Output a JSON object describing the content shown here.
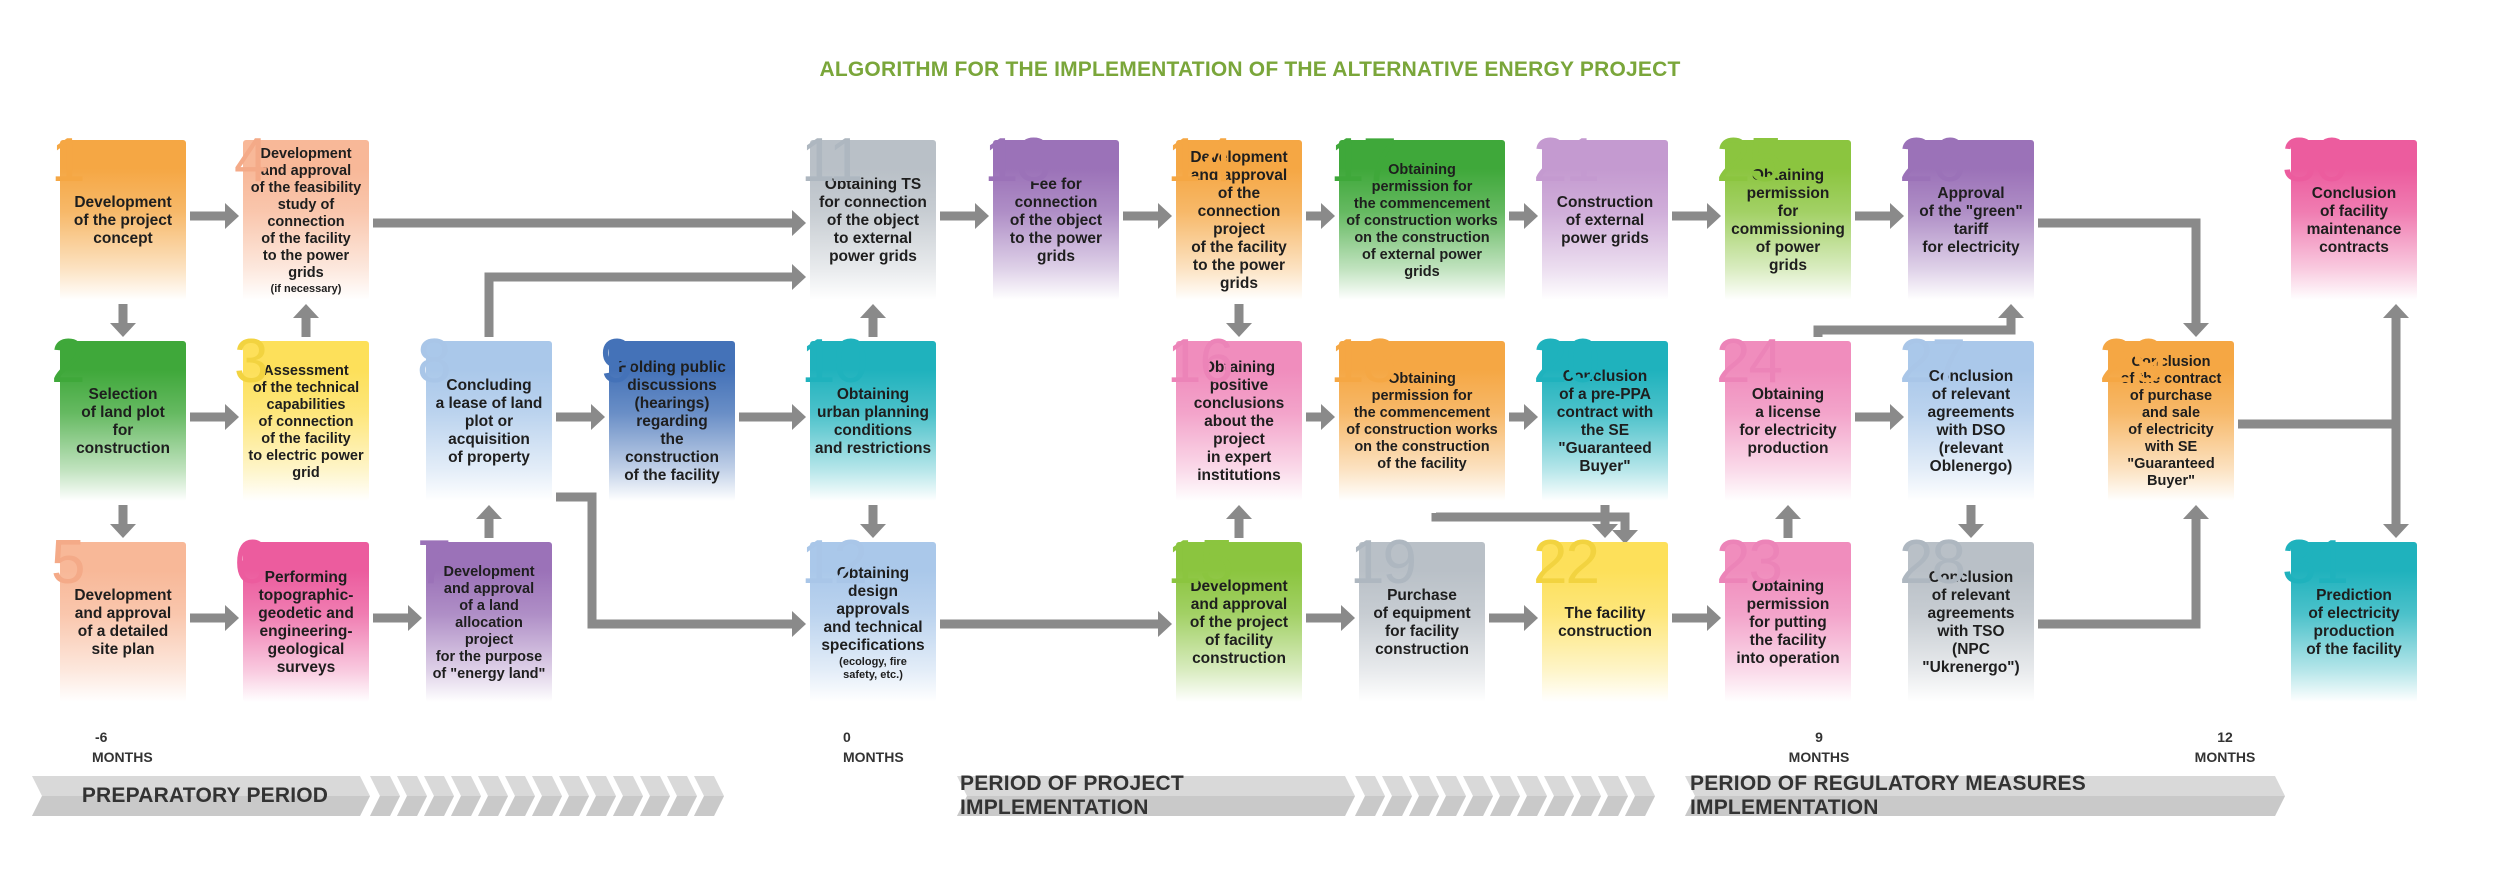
{
  "title": "ALGORITHM FOR THE IMPLEMENTATION OF THE ALTERNATIVE ENERGY PROJECT",
  "steps": [
    {
      "n": "1",
      "text": "Development\nof the project\nconcept",
      "color": "#f5a744",
      "numColor": "#f5a744"
    },
    {
      "n": "2",
      "text": "Selection\nof land plot\nfor construction",
      "color": "#3fa83a",
      "numColor": "#3fa83a"
    },
    {
      "n": "3",
      "text": "Assessment\nof the technical\ncapabilities\nof connection\nof the facility\nto electric power\ngrid",
      "color": "#fde05a",
      "numColor": "#f2d340"
    },
    {
      "n": "4",
      "text": "Development\nand approval\nof the feasibility\nstudy of connection\nof the facility\nto the power\ngrids",
      "note": "(if necessary)",
      "color": "#f8b898",
      "numColor": "#f4aa88"
    },
    {
      "n": "5",
      "text": "Development\nand approval\nof a detailed\nsite plan",
      "color": "#f8b898",
      "numColor": "#f4aa88"
    },
    {
      "n": "6",
      "text": "Performing\ntopographic-\ngeodetic and\nengineering-\ngeological\nsurveys",
      "color": "#ec5c9e",
      "numColor": "#ec5c9e"
    },
    {
      "n": "7",
      "text": "Development\nand approval\nof a land\nallocation\nproject\nfor the purpose\nof \"energy land\"",
      "color": "#9b72b8",
      "numColor": "#9b72b8"
    },
    {
      "n": "8",
      "text": "Concluding\na lease of land\nplot or\nacquisition\nof property",
      "color": "#aac8ea",
      "numColor": "#a9c6e8"
    },
    {
      "n": "9",
      "text": "Holding public\ndiscussions\n(hearings)\nregarding\nthe construction\nof the facility",
      "color": "#4472b8",
      "numColor": "#4472b8"
    },
    {
      "n": "10",
      "text": "Obtaining\nurban planning\nconditions\nand restrictions",
      "color": "#1fb2bd",
      "numColor": "#1fb2bd"
    },
    {
      "n": "11",
      "text": "Obtaining TS\nfor connection\nof the object\nto external\npower grids",
      "color": "#b9c0c7",
      "numColor": "#aeb7c0"
    },
    {
      "n": "12",
      "text": "Obtaining\ndesign\napprovals\nand technical\nspecifications",
      "note": "(ecology, fire\nsafety, etc.)",
      "color": "#aac8ea",
      "numColor": "#a9c6e8"
    },
    {
      "n": "13",
      "text": "Fee for\nconnection\nof the object\nto the power\ngrids",
      "color": "#9b72b8",
      "numColor": "#9b72b8"
    },
    {
      "n": "14",
      "text": "Development\nand approval\nof the connection\nproject\nof the facility\nto the power\ngrids",
      "color": "#f5a744",
      "numColor": "#f5a744"
    },
    {
      "n": "15",
      "text": "Development\nand approval\nof the project\nof facility\nconstruction",
      "color": "#8bc53f",
      "numColor": "#8bc53f"
    },
    {
      "n": "16",
      "text": "Obtaining\npositive\nconclusions\nabout the project\nin expert\ninstitutions",
      "color": "#f08dbd",
      "numColor": "#ec84b8"
    },
    {
      "n": "17",
      "text": "Obtaining\npermission for\nthe commencement\nof construction works\non the construction\nof external power\ngrids",
      "color": "#3fa83a",
      "numColor": "#3fa83a"
    },
    {
      "n": "18",
      "text": "Obtaining\npermission for\nthe commencement\nof construction works\non the construction\nof the facility",
      "color": "#f5a744",
      "numColor": "#f5a744"
    },
    {
      "n": "19",
      "text": "Purchase\nof equipment\nfor facility\nconstruction",
      "color": "#b9c0c7",
      "numColor": "#aeb7c0"
    },
    {
      "n": "20",
      "text": "Conclusion\nof a pre-PPA\ncontract with\nthe SE\n\"Guaranteed\nBuyer\"",
      "color": "#1fb2bd",
      "numColor": "#1fb2bd"
    },
    {
      "n": "21",
      "text": "Construction\nof external\npower grids",
      "color": "#c49ad0",
      "numColor": "#c49ad0"
    },
    {
      "n": "22",
      "text": "The facility\nconstruction",
      "color": "#fde05a",
      "numColor": "#f2d340"
    },
    {
      "n": "23",
      "text": "Obtaining\npermission\nfor putting\nthe facility\ninto operation",
      "color": "#f08dbd",
      "numColor": "#ec84b8"
    },
    {
      "n": "24",
      "text": "Obtaining\na license\nfor electricity\nproduction",
      "color": "#f08dbd",
      "numColor": "#ec84b8"
    },
    {
      "n": "25",
      "text": "Obtaining\npermission\nfor\ncommissioning\nof power\ngrids",
      "color": "#8bc53f",
      "numColor": "#8bc53f"
    },
    {
      "n": "26",
      "text": "Approval\nof the \"green\"\ntariff\nfor electricity",
      "color": "#9b72b8",
      "numColor": "#9b72b8"
    },
    {
      "n": "27",
      "text": "Conclusion\nof relevant\nagreements\nwith DSO\n(relevant\nOblenergo)",
      "color": "#aac8ea",
      "numColor": "#a9c6e8"
    },
    {
      "n": "28",
      "text": "Conclusion\nof relevant\nagreements\nwith TSO\n(NPC\n\"Ukrenergo\")",
      "color": "#b9c0c7",
      "numColor": "#aeb7c0"
    },
    {
      "n": "29",
      "text": "Conclusion\nof the contract\nof purchase\nand sale\nof electricity\nwith SE\n\"Guaranteed Buyer\"",
      "color": "#f5a744",
      "numColor": "#f5a744"
    },
    {
      "n": "30",
      "text": "Conclusion\nof facility\nmaintenance\ncontracts",
      "color": "#ec5c9e",
      "numColor": "#ec5c9e"
    },
    {
      "n": "31",
      "text": "Prediction\nof electricity\nproduction\nof the facility",
      "color": "#1fb2bd",
      "numColor": "#1fb2bd"
    }
  ],
  "timeline": {
    "marks": [
      {
        "value": "-6",
        "unit": "MONTHS"
      },
      {
        "value": "0",
        "unit": "MONTHS"
      },
      {
        "value": "9",
        "unit": "MONTHS"
      },
      {
        "value": "12",
        "unit": "MONTHS"
      }
    ],
    "periods": [
      "PREPARATORY PERIOD",
      "PERIOD OF PROJECT IMPLEMENTATION",
      "PERIOD OF REGULATORY MEASURES IMPLEMENTATION"
    ]
  }
}
